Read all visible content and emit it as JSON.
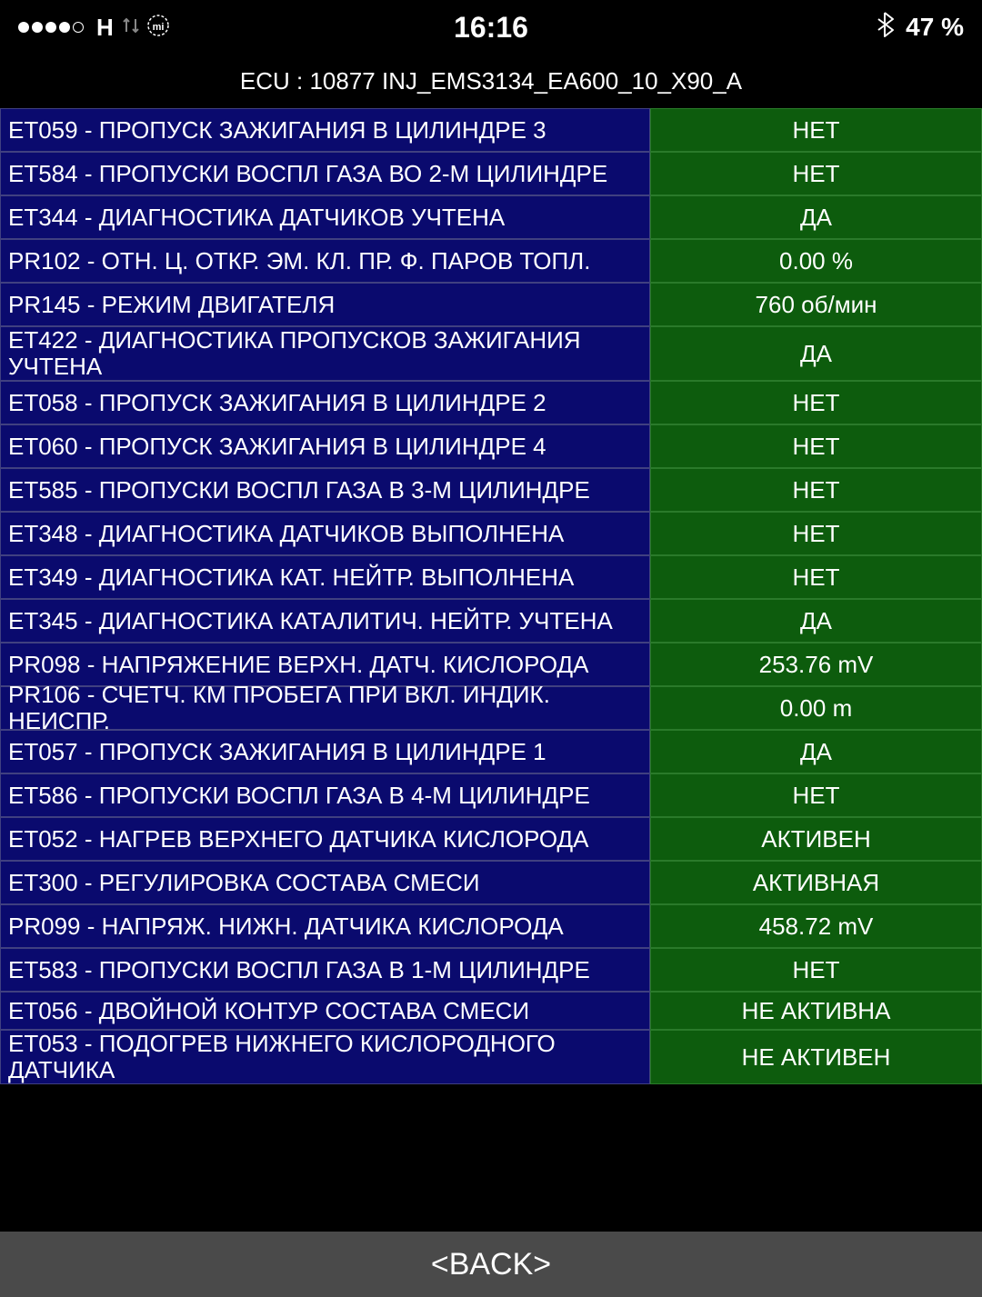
{
  "statusBar": {
    "networkLabel": "H",
    "time": "16:16",
    "batteryPercent": "47 %"
  },
  "ecuHeader": "ECU : 10877  INJ_EMS3134_EA600_10_X90_A",
  "rows": [
    {
      "label": "ET059 - ПРОПУСК ЗАЖИГАНИЯ В ЦИЛИНДРЕ 3",
      "value": "НЕТ"
    },
    {
      "label": "ET584 - ПРОПУСКИ ВОСПЛ ГАЗА ВО 2-М ЦИЛИНДРЕ",
      "value": "НЕТ"
    },
    {
      "label": "ET344 - ДИАГНОСТИКА ДАТЧИКОВ УЧТЕНА",
      "value": "ДА"
    },
    {
      "label": "PR102 - ОТН. Ц. ОТКР. ЭМ. КЛ. ПР. Ф. ПАРОВ ТОПЛ.",
      "value": "0.00 %"
    },
    {
      "label": "PR145 - РЕЖИМ ДВИГАТЕЛЯ",
      "value": "760 об/мин"
    },
    {
      "label": "ET422 - ДИАГНОСТИКА ПРОПУСКОВ ЗАЖИГАНИЯ УЧТЕНА",
      "value": "ДА",
      "tall": true
    },
    {
      "label": "ET058 - ПРОПУСК ЗАЖИГАНИЯ В ЦИЛИНДРЕ 2",
      "value": "НЕТ"
    },
    {
      "label": "ET060 - ПРОПУСК ЗАЖИГАНИЯ В ЦИЛИНДРЕ 4",
      "value": "НЕТ"
    },
    {
      "label": "ET585 - ПРОПУСКИ ВОСПЛ ГАЗА В 3-М ЦИЛИНДРЕ",
      "value": "НЕТ"
    },
    {
      "label": "ET348 - ДИАГНОСТИКА ДАТЧИКОВ ВЫПОЛНЕНА",
      "value": "НЕТ"
    },
    {
      "label": "ET349 - ДИАГНОСТИКА КАТ. НЕЙТР. ВЫПОЛНЕНА",
      "value": "НЕТ"
    },
    {
      "label": "ET345 - ДИАГНОСТИКА КАТАЛИТИЧ. НЕЙТР. УЧТЕНА",
      "value": "ДА"
    },
    {
      "label": "PR098 - НАПРЯЖЕНИЕ ВЕРХН. ДАТЧ. КИСЛОРОДА",
      "value": "253.76 mV"
    },
    {
      "label": "PR106 - СЧЕТЧ. КМ ПРОБЕГА ПРИ ВКЛ. ИНДИК. НЕИСПР.",
      "value": "0.00 m"
    },
    {
      "label": "ET057 - ПРОПУСК ЗАЖИГАНИЯ В ЦИЛИНДРЕ 1",
      "value": "ДА"
    },
    {
      "label": "ET586 - ПРОПУСКИ ВОСПЛ ГАЗА В 4-М ЦИЛИНДРЕ",
      "value": "НЕТ"
    },
    {
      "label": "ET052 - НАГРЕВ ВЕРХНЕГО ДАТЧИКА КИСЛОРОДА",
      "value": "АКТИВЕН"
    },
    {
      "label": "ET300 - РЕГУЛИРОВКА СОСТАВА СМЕСИ",
      "value": "АКТИВНАЯ"
    },
    {
      "label": "PR099 - НАПРЯЖ. НИЖН. ДАТЧИКА КИСЛОРОДА",
      "value": "458.72 mV"
    },
    {
      "label": "ET583 - ПРОПУСКИ ВОСПЛ ГАЗА В 1-М ЦИЛИНДРЕ",
      "value": "НЕТ"
    },
    {
      "label": "ET056 - ДВОЙНОЙ КОНТУР СОСТАВА СМЕСИ",
      "value": "НЕ АКТИВНА",
      "short": true
    },
    {
      "label": "ET053 - ПОДОГРЕВ НИЖНЕГО КИСЛОРОДНОГО ДАТЧИКА",
      "value": "НЕ АКТИВЕН",
      "tall": true
    }
  ],
  "backButton": "<BACK>",
  "colors": {
    "background": "#000000",
    "labelBg": "#0a0a6e",
    "labelBorder": "#404080",
    "valueBg": "#0d5c0d",
    "valueBorder": "#2a7a2a",
    "backBg": "#4a4a4a",
    "text": "#ffffff"
  }
}
